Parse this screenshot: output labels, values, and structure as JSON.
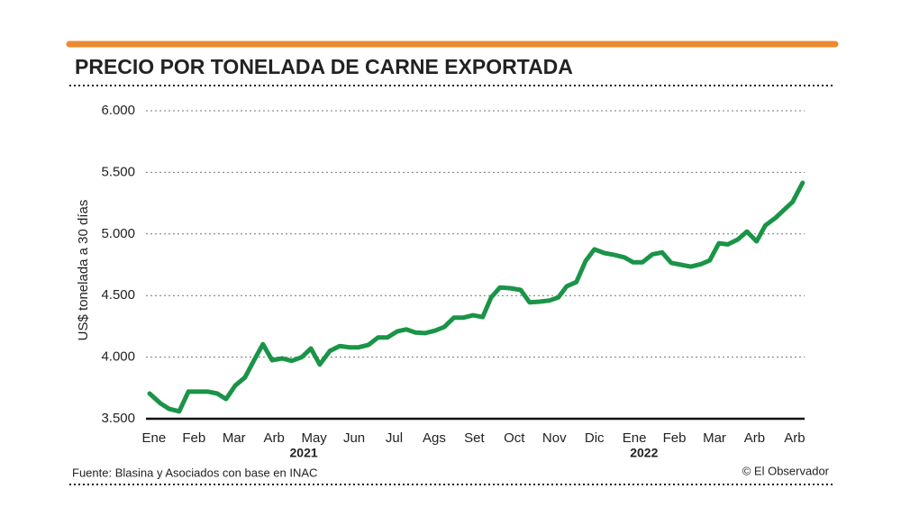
{
  "chart_data": {
    "type": "line",
    "title": "PRECIO POR TONELADA DE CARNE EXPORTADA",
    "y_label": "US$ tonelada a 30 días",
    "source": "Fuente: Blasina y Asociados con base en INAC",
    "credit": "© El Observador",
    "xlim": [
      -0.2,
      16.25
    ],
    "xticks": [
      {
        "value": 0,
        "label": "Ene"
      },
      {
        "value": 1,
        "label": "Feb"
      },
      {
        "value": 2,
        "label": "Mar"
      },
      {
        "value": 3,
        "label": "Arb"
      },
      {
        "value": 4,
        "label": "May"
      },
      {
        "value": 5,
        "label": "Jun"
      },
      {
        "value": 6,
        "label": "Jul"
      },
      {
        "value": 7,
        "label": "Ags"
      },
      {
        "value": 8,
        "label": "Set"
      },
      {
        "value": 9,
        "label": "Oct"
      },
      {
        "value": 10,
        "label": "Nov"
      },
      {
        "value": 11,
        "label": "Dic"
      },
      {
        "value": 12,
        "label": "Ene"
      },
      {
        "value": 13,
        "label": "Feb"
      },
      {
        "value": 14,
        "label": "Mar"
      },
      {
        "value": 15,
        "label": "Arb"
      },
      {
        "value": 16,
        "label": "Arb"
      }
    ],
    "year_labels": [
      {
        "value": 3.74,
        "label": "2021"
      },
      {
        "value": 12.24,
        "label": "2022"
      }
    ],
    "ylim": [
      3500,
      6000
    ],
    "yticks": [
      {
        "value": 3500,
        "label": "3.500"
      },
      {
        "value": 4000,
        "label": "4.000"
      },
      {
        "value": 4500,
        "label": "4.500"
      },
      {
        "value": 5000,
        "label": "5.000"
      },
      {
        "value": 5500,
        "label": "5.500"
      },
      {
        "value": 6000,
        "label": "6.000"
      }
    ],
    "grid": true,
    "series": [
      {
        "color": "#1a9447",
        "x": [
          -0.11,
          0.16,
          0.38,
          0.63,
          0.86,
          1.1,
          1.35,
          1.58,
          1.8,
          2.03,
          2.27,
          2.5,
          2.72,
          2.95,
          3.2,
          3.44,
          3.69,
          3.92,
          4.14,
          4.39,
          4.64,
          4.88,
          5.11,
          5.36,
          5.6,
          5.83,
          6.08,
          6.3,
          6.53,
          6.77,
          7.02,
          7.25,
          7.49,
          7.72,
          7.97,
          8.21,
          8.42,
          8.64,
          8.89,
          9.16,
          9.38,
          9.63,
          9.88,
          10.1,
          10.31,
          10.55,
          10.78,
          11.0,
          11.25,
          11.5,
          11.75,
          11.97,
          12.2,
          12.45,
          12.69,
          12.92,
          13.16,
          13.41,
          13.66,
          13.88,
          14.11,
          14.33,
          14.58,
          14.81,
          15.05,
          15.27,
          15.52,
          15.75,
          15.95,
          16.2
        ],
        "values": [
          3705,
          3625,
          3580,
          3560,
          3720,
          3720,
          3720,
          3705,
          3660,
          3770,
          3835,
          3975,
          4105,
          3975,
          3990,
          3970,
          4000,
          4070,
          3940,
          4050,
          4090,
          4080,
          4080,
          4100,
          4160,
          4160,
          4210,
          4225,
          4200,
          4195,
          4215,
          4245,
          4320,
          4320,
          4340,
          4325,
          4485,
          4565,
          4560,
          4545,
          4445,
          4450,
          4460,
          4485,
          4575,
          4610,
          4780,
          4875,
          4845,
          4830,
          4810,
          4770,
          4770,
          4835,
          4850,
          4765,
          4750,
          4735,
          4755,
          4785,
          4925,
          4915,
          4955,
          5020,
          4940,
          5070,
          5130,
          5200,
          5260,
          5415
        ]
      }
    ]
  }
}
